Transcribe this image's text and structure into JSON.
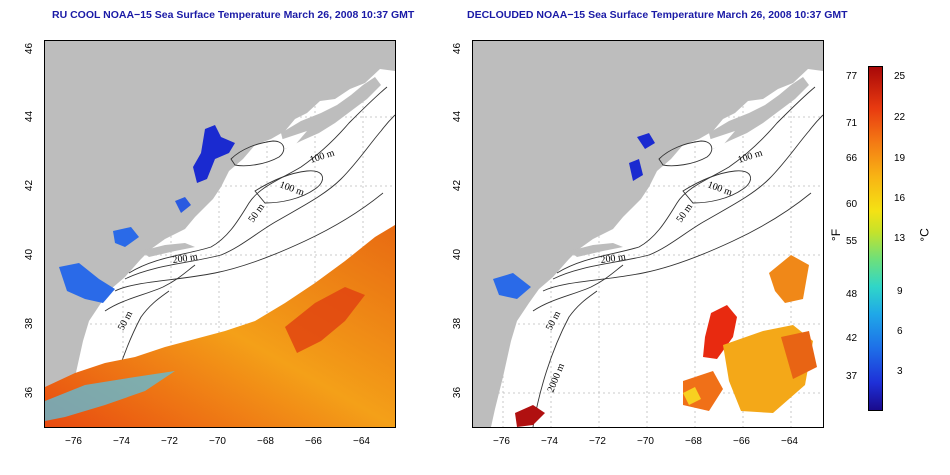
{
  "titles": {
    "left": "RU COOL NOAA−15 Sea Surface Temperature March 26, 2008 10:37 GMT",
    "right": "DECLOUDED NOAA−15 Sea Surface Temperature March 26, 2008 10:37 GMT"
  },
  "axes": {
    "x_ticks": [
      "−76",
      "−74",
      "−72",
      "−70",
      "−68",
      "−66",
      "−64"
    ],
    "y_ticks": [
      "46",
      "44",
      "42",
      "40",
      "38",
      "36"
    ]
  },
  "contours": {
    "depth_100": "100 m",
    "depth_100b": "100 m",
    "depth_50a": "50 m",
    "depth_200": "200 m",
    "depth_50b": "50 m",
    "depth_2000": "2000 m"
  },
  "colorbar": {
    "fahrenheit_ticks": [
      "77",
      "71",
      "66",
      "60",
      "55",
      "48",
      "42",
      "37"
    ],
    "celsius_ticks": [
      "25",
      "22",
      "19",
      "16",
      "13",
      "9",
      "6",
      "3"
    ],
    "unit_f": "°F",
    "unit_c": "°C"
  },
  "colors": {
    "land": "#bdbdbd",
    "title": "#1a1aa6"
  }
}
